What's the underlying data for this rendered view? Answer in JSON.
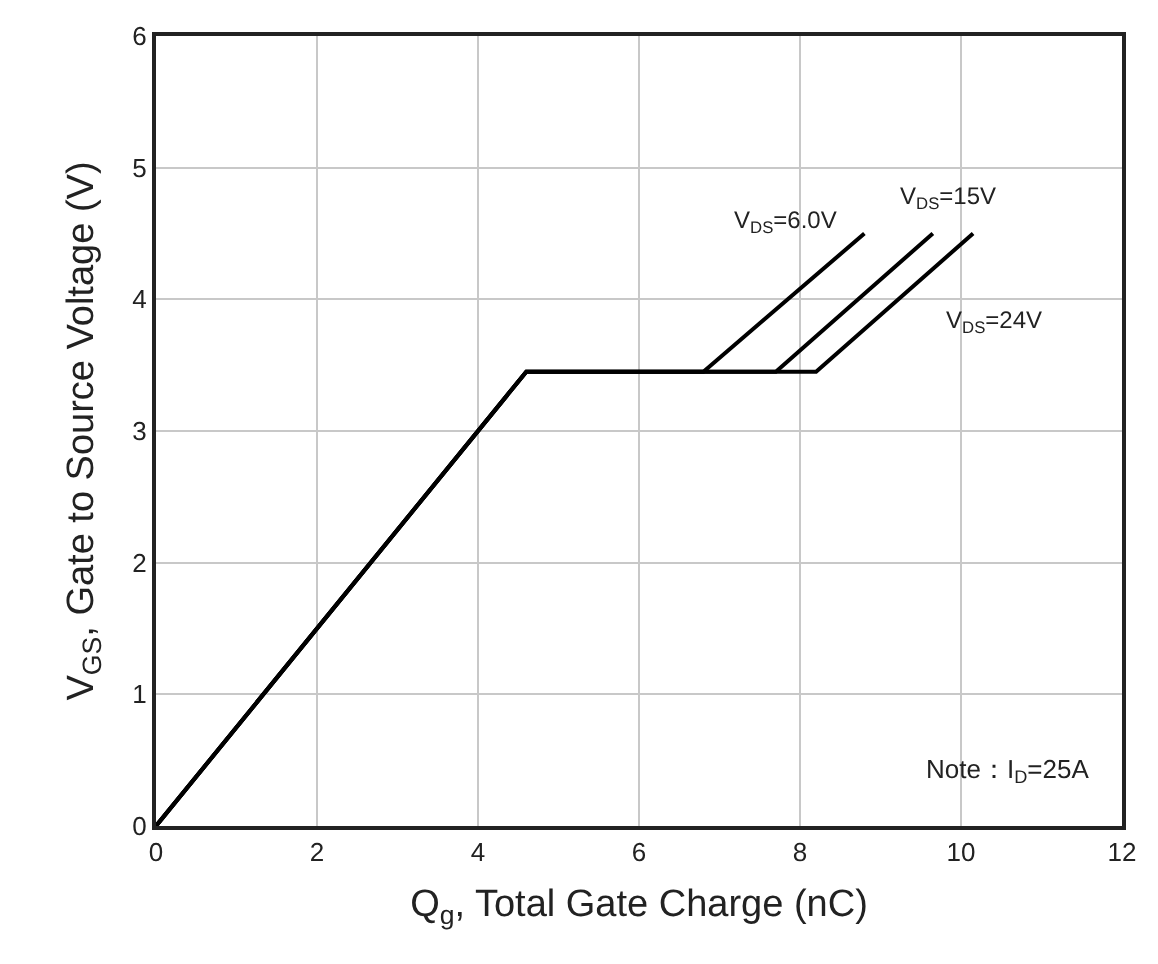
{
  "chart_data": {
    "type": "line",
    "xlabel": "Q$_{g}$, Total Gate Charge (nC)",
    "ylabel": "V$_{GS}$, Gate to Source Voltage (V)",
    "series": [
      {
        "name": "V$_{DS}$=6.0V",
        "color": "#000000",
        "x": [
          0,
          4.6,
          6.8,
          8.8
        ],
        "values": [
          0,
          3.45,
          3.45,
          4.5
        ]
      },
      {
        "name": "V$_{DS}$=15V",
        "color": "#000000",
        "x": [
          0,
          4.6,
          7.7,
          9.65
        ],
        "values": [
          0,
          3.45,
          3.45,
          4.5
        ]
      },
      {
        "name": "V$_{DS}$=24V",
        "color": "#000000",
        "x": [
          0,
          4.6,
          8.2,
          10.15
        ],
        "values": [
          0,
          3.45,
          3.45,
          4.5
        ]
      }
    ],
    "annotations": [
      "Note：I$_{D}$=25A"
    ],
    "xlim": [
      0,
      12
    ],
    "xticks": [
      0,
      2,
      4,
      6,
      8,
      10,
      12
    ],
    "ylim": [
      0,
      6
    ],
    "yticks": [
      0,
      1,
      2,
      3,
      4,
      5,
      6
    ],
    "grid": true,
    "legend": false,
    "marker": "none",
    "line_style": "solid"
  }
}
